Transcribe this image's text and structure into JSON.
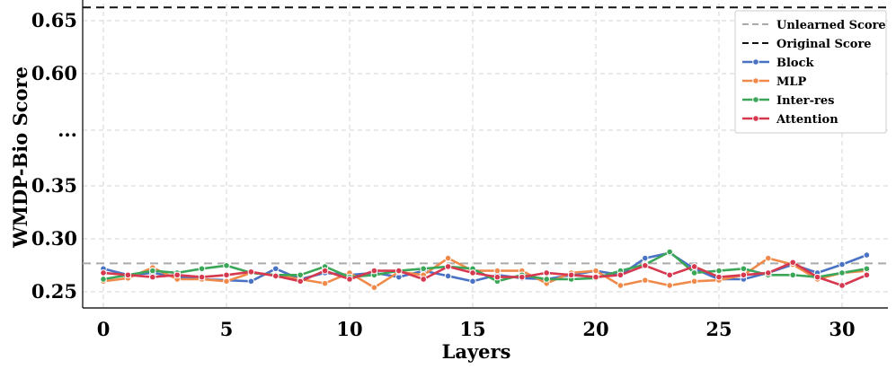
{
  "chart_data": {
    "type": "line",
    "title": "",
    "xlabel": "Layers",
    "ylabel": "WMDP-Bio Score",
    "xlim": [
      0,
      32
    ],
    "x_ticks": [
      "0",
      "5",
      "10",
      "15",
      "20",
      "25",
      "30"
    ],
    "y_ticks": [
      "0.25",
      "0.30",
      "0.35",
      "...",
      "0.60",
      "0.65"
    ],
    "grid": true,
    "legend_position": "top-right",
    "reference_lines": [
      {
        "name": "Unlearned Score",
        "value": 0.277,
        "color": "#aaaaaa",
        "style": "dashed"
      },
      {
        "name": "Original Score",
        "value": 0.663,
        "color": "#111111",
        "style": "dashed"
      }
    ],
    "x": [
      0,
      1,
      2,
      3,
      4,
      5,
      6,
      7,
      8,
      9,
      10,
      11,
      12,
      13,
      14,
      15,
      16,
      17,
      18,
      19,
      20,
      21,
      22,
      23,
      24,
      25,
      26,
      27,
      28,
      29,
      30,
      31
    ],
    "series": [
      {
        "name": "Block",
        "color": "#4a72c4",
        "values": [
          0.272,
          0.266,
          0.268,
          0.264,
          0.262,
          0.261,
          0.26,
          0.272,
          0.262,
          0.268,
          0.266,
          0.268,
          0.264,
          0.27,
          0.265,
          0.26,
          0.266,
          0.263,
          0.262,
          0.266,
          0.27,
          0.266,
          0.282,
          0.287,
          0.272,
          0.262,
          0.262,
          0.268,
          0.276,
          0.268,
          0.276,
          0.285
        ]
      },
      {
        "name": "MLP",
        "color": "#f08a4a",
        "values": [
          0.26,
          0.263,
          0.273,
          0.262,
          0.262,
          0.26,
          0.268,
          0.266,
          0.262,
          0.258,
          0.268,
          0.254,
          0.269,
          0.266,
          0.282,
          0.27,
          0.27,
          0.27,
          0.258,
          0.268,
          0.27,
          0.256,
          0.261,
          0.256,
          0.26,
          0.261,
          0.266,
          0.282,
          0.276,
          0.262,
          0.268,
          0.27
        ]
      },
      {
        "name": "Inter-res",
        "color": "#3aa658",
        "values": [
          0.262,
          0.266,
          0.27,
          0.268,
          0.272,
          0.275,
          0.268,
          0.266,
          0.266,
          0.274,
          0.264,
          0.266,
          0.27,
          0.272,
          0.274,
          0.272,
          0.26,
          0.266,
          0.262,
          0.262,
          0.263,
          0.27,
          0.276,
          0.288,
          0.268,
          0.27,
          0.272,
          0.266,
          0.266,
          0.264,
          0.268,
          0.272
        ]
      },
      {
        "name": "Attention",
        "color": "#d6394f",
        "values": [
          0.268,
          0.266,
          0.264,
          0.266,
          0.264,
          0.266,
          0.269,
          0.265,
          0.26,
          0.27,
          0.262,
          0.27,
          0.27,
          0.262,
          0.274,
          0.268,
          0.264,
          0.264,
          0.268,
          0.266,
          0.264,
          0.266,
          0.275,
          0.266,
          0.274,
          0.264,
          0.266,
          0.268,
          0.278,
          0.264,
          0.256,
          0.266
        ]
      }
    ]
  }
}
